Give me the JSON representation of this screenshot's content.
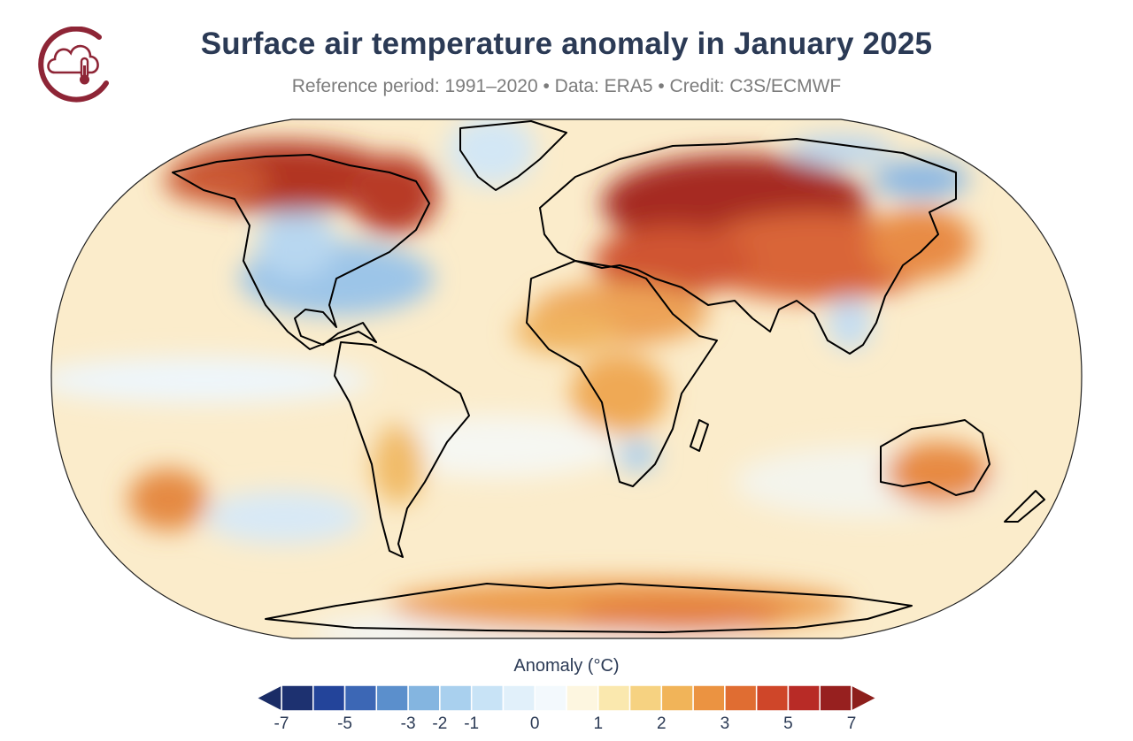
{
  "title": "Surface air temperature anomaly in January 2025",
  "subtitle": "Reference period: 1991–2020 • Data: ERA5 • Credit: C3S/ECMWF",
  "logo": {
    "icon": "cloud-thermometer-icon",
    "color": "#8e2536"
  },
  "map": {
    "projection": "robinson",
    "variable": "surface air temperature anomaly",
    "ocean_base_color": "#fbeccb",
    "coastline_color": "#000000"
  },
  "legend": {
    "title": "Anomaly (°C)",
    "tick_labels": [
      "-7",
      "-5",
      "-3",
      "-2",
      "-1",
      "0",
      "1",
      "2",
      "3",
      "5",
      "7"
    ],
    "colors": [
      "#1d3170",
      "#23449a",
      "#3c67b5",
      "#5b8fcc",
      "#84b5e0",
      "#a9d0ee",
      "#c8e3f6",
      "#e1f0fa",
      "#f3f9fd",
      "#fdf6e0",
      "#fae8ae",
      "#f6d281",
      "#f1b459",
      "#eb9341",
      "#e06d32",
      "#cf4629",
      "#b82b26",
      "#97201f"
    ],
    "low_extend_color": "#1a2c66",
    "high_extend_color": "#8d1f1c"
  }
}
